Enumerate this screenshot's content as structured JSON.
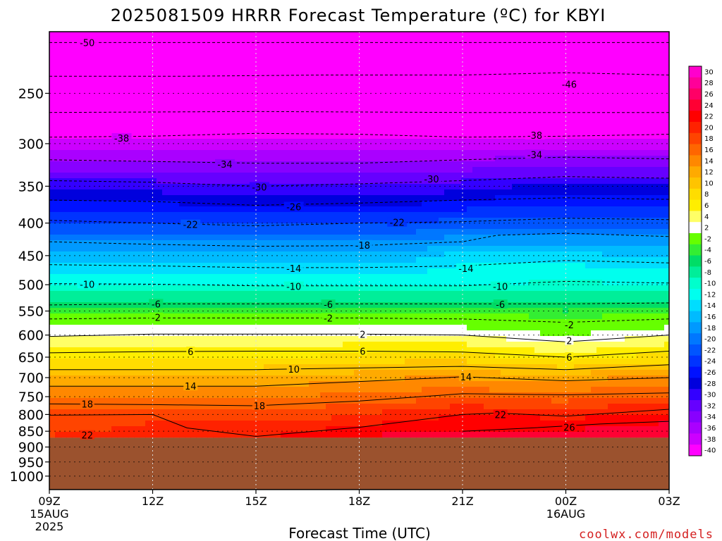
{
  "chart_data": {
    "type": "heatmap",
    "title": "2025081509 HRRR Forecast Temperature (ºC) for KBYI",
    "xlabel": "Forecast Time (UTC)",
    "ylabel": "",
    "credit": "coolwx.com/models",
    "x_ticks": [
      {
        "hour": 0,
        "label": "09Z",
        "date": "15AUG",
        "year": "2025"
      },
      {
        "hour": 3,
        "label": "12Z"
      },
      {
        "hour": 6,
        "label": "15Z"
      },
      {
        "hour": 9,
        "label": "18Z"
      },
      {
        "hour": 12,
        "label": "21Z"
      },
      {
        "hour": 15,
        "label": "00Z",
        "date": "16AUG"
      },
      {
        "hour": 18,
        "label": "03Z"
      }
    ],
    "xlim": [
      0,
      18
    ],
    "ylim_hPa": [
      1050,
      200
    ],
    "y_scale": "log",
    "y_ticks": [
      250,
      300,
      350,
      400,
      450,
      500,
      550,
      600,
      650,
      700,
      750,
      800,
      850,
      900,
      950,
      1000
    ],
    "surface_pressure_hPa": 870,
    "colorbar": {
      "levels": [
        30,
        28,
        26,
        24,
        22,
        20,
        18,
        16,
        14,
        12,
        10,
        8,
        6,
        4,
        2,
        -2,
        -4,
        -6,
        -8,
        -10,
        -12,
        -14,
        -16,
        -18,
        -20,
        -22,
        -24,
        -26,
        -28,
        -30,
        -32,
        -34,
        -36,
        -38,
        -40
      ],
      "colors": [
        "#ff00cc",
        "#ff0099",
        "#ff0066",
        "#ff0033",
        "#ff0000",
        "#ff2200",
        "#ff4400",
        "#ff6600",
        "#ff8800",
        "#ffaa00",
        "#ffc400",
        "#ffdd00",
        "#ffee00",
        "#ffff66",
        "#ffffff",
        "#66ff00",
        "#33ee33",
        "#00dd66",
        "#00ee99",
        "#00ffcc",
        "#00ffee",
        "#00ddff",
        "#00bbff",
        "#0099ff",
        "#0077ff",
        "#0055ff",
        "#0033ff",
        "#0011ff",
        "#0000dd",
        "#3300ff",
        "#6600ff",
        "#8800ff",
        "#aa00ff",
        "#cc00ff",
        "#ff00ff"
      ]
    },
    "temperature_profiles": [
      {
        "pressure": 870,
        "temps": [
          20,
          20,
          21,
          22,
          22,
          23,
          24,
          25,
          25,
          25,
          25,
          25,
          25
        ]
      },
      {
        "pressure": 850,
        "temps": [
          20,
          20,
          21,
          21,
          21,
          22,
          23,
          24,
          24,
          24,
          24,
          25,
          26
        ]
      },
      {
        "pressure": 800,
        "temps": [
          19,
          19,
          19,
          19,
          19,
          19,
          20,
          21,
          22,
          22,
          21,
          22,
          22
        ]
      },
      {
        "pressure": 750,
        "temps": [
          16,
          16,
          16,
          16,
          16,
          16,
          17,
          17,
          18,
          17,
          17,
          18,
          18
        ]
      },
      {
        "pressure": 700,
        "temps": [
          12,
          12,
          12,
          12,
          12,
          13,
          13,
          14,
          14,
          13,
          13,
          14,
          14
        ]
      },
      {
        "pressure": 650,
        "temps": [
          8,
          8,
          8,
          8,
          8,
          8,
          9,
          9,
          9,
          8,
          7,
          8,
          9
        ]
      },
      {
        "pressure": 600,
        "temps": [
          4,
          4,
          4,
          4,
          4,
          4,
          4,
          4,
          4,
          3,
          2,
          3,
          4
        ]
      },
      {
        "pressure": 575,
        "temps": [
          1,
          1,
          1,
          1,
          1,
          1,
          1,
          1,
          1,
          0,
          -1,
          0,
          1
        ]
      },
      {
        "pressure": 550,
        "temps": [
          -3,
          -3,
          -3,
          -3,
          -3,
          -3,
          -3,
          -3,
          -3,
          -3,
          -4,
          -3,
          -3
        ]
      },
      {
        "pressure": 500,
        "temps": [
          -10,
          -10,
          -10,
          -10,
          -10,
          -10,
          -10,
          -10,
          -10,
          -10,
          -9,
          -10,
          -10
        ]
      },
      {
        "pressure": 450,
        "temps": [
          -15,
          -15,
          -15,
          -15,
          -15,
          -15,
          -15,
          -15,
          -13,
          -13,
          -13,
          -14,
          -14
        ]
      },
      {
        "pressure": 400,
        "temps": [
          -22,
          -22,
          -22,
          -22,
          -22,
          -22,
          -22,
          -22,
          -21,
          -21,
          -21,
          -21,
          -21
        ]
      },
      {
        "pressure": 350,
        "temps": [
          -29,
          -29,
          -29,
          -30,
          -30,
          -30,
          -30,
          -30,
          -29,
          -28,
          -28,
          -28,
          -28
        ]
      },
      {
        "pressure": 300,
        "temps": [
          -37,
          -37,
          -37,
          -37,
          -37,
          -37,
          -37,
          -37,
          -37,
          -37,
          -37,
          -37,
          -37
        ]
      },
      {
        "pressure": 250,
        "temps": [
          -44,
          -44,
          -44,
          -44,
          -44,
          -44,
          -44,
          -44,
          -44,
          -45,
          -46,
          -45,
          -44
        ]
      },
      {
        "pressure": 205,
        "temps": [
          -50,
          -50,
          -50,
          -50,
          -50,
          -50,
          -50,
          -50,
          -50,
          -50,
          -50,
          -50,
          -50
        ]
      }
    ],
    "contours": [
      {
        "level": -50,
        "dashed": true,
        "points": [
          [
            0,
            208
          ],
          [
            6,
            208
          ],
          [
            12,
            208
          ],
          [
            18,
            208
          ]
        ],
        "labels": [
          [
            1.1,
            208
          ]
        ]
      },
      {
        "level": -46,
        "dashed": true,
        "points": [
          [
            0,
            235
          ],
          [
            4,
            235
          ],
          [
            8,
            234
          ],
          [
            12,
            234
          ],
          [
            15,
            232
          ],
          [
            18,
            234
          ]
        ],
        "labels": [
          [
            15.1,
            242
          ]
        ]
      },
      {
        "level": -42,
        "dashed": true,
        "points": [
          [
            0,
            268
          ],
          [
            6,
            267
          ],
          [
            12,
            268
          ],
          [
            18,
            268
          ]
        ],
        "labels": []
      },
      {
        "level": -38,
        "dashed": true,
        "points": [
          [
            0,
            293
          ],
          [
            3,
            292
          ],
          [
            6,
            289
          ],
          [
            9,
            290
          ],
          [
            12,
            293
          ],
          [
            15,
            292
          ],
          [
            18,
            290
          ]
        ],
        "labels": [
          [
            2.1,
            294
          ],
          [
            14.1,
            291
          ]
        ]
      },
      {
        "level": -34,
        "dashed": true,
        "points": [
          [
            0,
            318
          ],
          [
            3,
            320
          ],
          [
            6,
            322
          ],
          [
            9,
            322
          ],
          [
            12,
            318
          ],
          [
            15,
            315
          ],
          [
            18,
            317
          ]
        ],
        "labels": [
          [
            5.1,
            323
          ],
          [
            14.1,
            312
          ]
        ]
      },
      {
        "level": -30,
        "dashed": true,
        "points": [
          [
            0,
            343
          ],
          [
            3,
            345
          ],
          [
            6,
            350
          ],
          [
            9,
            347
          ],
          [
            12,
            343
          ],
          [
            15,
            338
          ],
          [
            18,
            340
          ]
        ],
        "labels": [
          [
            6.1,
            351
          ],
          [
            11.1,
            341
          ]
        ]
      },
      {
        "level": -26,
        "dashed": true,
        "points": [
          [
            0,
            368
          ],
          [
            3,
            370
          ],
          [
            6,
            375
          ],
          [
            9,
            372
          ],
          [
            12,
            368
          ],
          [
            15,
            365
          ],
          [
            18,
            367
          ]
        ],
        "labels": [
          [
            7.1,
            377
          ]
        ]
      },
      {
        "level": -22,
        "dashed": true,
        "points": [
          [
            0,
            396
          ],
          [
            3,
            400
          ],
          [
            6,
            404
          ],
          [
            9,
            400
          ],
          [
            12,
            398
          ],
          [
            15,
            393
          ],
          [
            18,
            395
          ]
        ],
        "labels": [
          [
            4.1,
            402
          ],
          [
            10.1,
            399
          ]
        ]
      },
      {
        "level": -18,
        "dashed": true,
        "points": [
          [
            0,
            428
          ],
          [
            3,
            432
          ],
          [
            6,
            435
          ],
          [
            9,
            434
          ],
          [
            12,
            428
          ],
          [
            13,
            418
          ],
          [
            15,
            415
          ],
          [
            18,
            420
          ]
        ],
        "labels": [
          [
            9.1,
            433
          ]
        ]
      },
      {
        "level": -14,
        "dashed": true,
        "points": [
          [
            0,
            465
          ],
          [
            3,
            467
          ],
          [
            6,
            470
          ],
          [
            9,
            470
          ],
          [
            12,
            467
          ],
          [
            15,
            458
          ],
          [
            18,
            462
          ]
        ],
        "labels": [
          [
            7.1,
            471
          ],
          [
            12.1,
            471
          ]
        ]
      },
      {
        "level": -10,
        "dashed": true,
        "points": [
          [
            0,
            498
          ],
          [
            3,
            499
          ],
          [
            6,
            502
          ],
          [
            9,
            502
          ],
          [
            12,
            502
          ],
          [
            15,
            494
          ],
          [
            18,
            497
          ]
        ],
        "labels": [
          [
            1.1,
            499
          ],
          [
            7.1,
            503
          ],
          [
            13.1,
            503
          ]
        ]
      },
      {
        "level": -6,
        "dashed": true,
        "points": [
          [
            0,
            538
          ],
          [
            3,
            536
          ],
          [
            6,
            536
          ],
          [
            9,
            536
          ],
          [
            12,
            536
          ],
          [
            15,
            536
          ],
          [
            18,
            534
          ]
        ],
        "labels": [
          [
            3.1,
            536
          ],
          [
            8.1,
            537
          ],
          [
            13.1,
            537
          ]
        ]
      },
      {
        "level": -2,
        "dashed": true,
        "points": [
          [
            0,
            566
          ],
          [
            3,
            564
          ],
          [
            6,
            564
          ],
          [
            9,
            564
          ],
          [
            12,
            566
          ],
          [
            15,
            573
          ],
          [
            18,
            566
          ]
        ],
        "labels": [
          [
            3.1,
            563
          ],
          [
            8.1,
            564
          ],
          [
            15.1,
            578
          ]
        ]
      },
      {
        "level": 2,
        "dashed": false,
        "points": [
          [
            0,
            603
          ],
          [
            3,
            598
          ],
          [
            6,
            598
          ],
          [
            9,
            598
          ],
          [
            12,
            600
          ],
          [
            15,
            615
          ],
          [
            18,
            600
          ]
        ],
        "labels": [
          [
            9.1,
            598
          ],
          [
            15.1,
            612
          ]
        ]
      },
      {
        "level": 6,
        "dashed": false,
        "points": [
          [
            0,
            640
          ],
          [
            3,
            637
          ],
          [
            6,
            636
          ],
          [
            9,
            636
          ],
          [
            12,
            638
          ],
          [
            15,
            650
          ],
          [
            18,
            636
          ]
        ],
        "labels": [
          [
            4.1,
            637
          ],
          [
            9.1,
            636
          ],
          [
            15.1,
            650
          ]
        ]
      },
      {
        "level": 10,
        "dashed": false,
        "points": [
          [
            0,
            680
          ],
          [
            3,
            680
          ],
          [
            6,
            680
          ],
          [
            9,
            676
          ],
          [
            12,
            672
          ],
          [
            15,
            680
          ],
          [
            18,
            668
          ]
        ],
        "labels": [
          [
            7.1,
            679
          ]
        ]
      },
      {
        "level": 14,
        "dashed": false,
        "points": [
          [
            0,
            722
          ],
          [
            3,
            722
          ],
          [
            6,
            722
          ],
          [
            9,
            710
          ],
          [
            12,
            698
          ],
          [
            15,
            708
          ],
          [
            18,
            700
          ]
        ],
        "labels": [
          [
            4.1,
            722
          ],
          [
            12.1,
            698
          ]
        ]
      },
      {
        "level": 18,
        "dashed": false,
        "points": [
          [
            0,
            770
          ],
          [
            3,
            772
          ],
          [
            6,
            775
          ],
          [
            9,
            762
          ],
          [
            12,
            742
          ],
          [
            15,
            745
          ],
          [
            18,
            740
          ]
        ],
        "labels": [
          [
            1.1,
            770
          ],
          [
            6.1,
            775
          ]
        ]
      },
      {
        "level": 22,
        "dashed": false,
        "points": [
          [
            0,
            802
          ],
          [
            3,
            800
          ],
          [
            4,
            840
          ],
          [
            6,
            866
          ],
          [
            9,
            838
          ],
          [
            12,
            800
          ],
          [
            13,
            796
          ],
          [
            15,
            805
          ],
          [
            18,
            785
          ]
        ],
        "labels": [
          [
            1.1,
            862
          ],
          [
            13.1,
            800
          ]
        ]
      },
      {
        "level": 26,
        "dashed": false,
        "points": [
          [
            12,
            850
          ],
          [
            14,
            840
          ],
          [
            16,
            828
          ],
          [
            18,
            820
          ]
        ],
        "labels": [
          [
            15.1,
            838
          ]
        ]
      }
    ]
  }
}
